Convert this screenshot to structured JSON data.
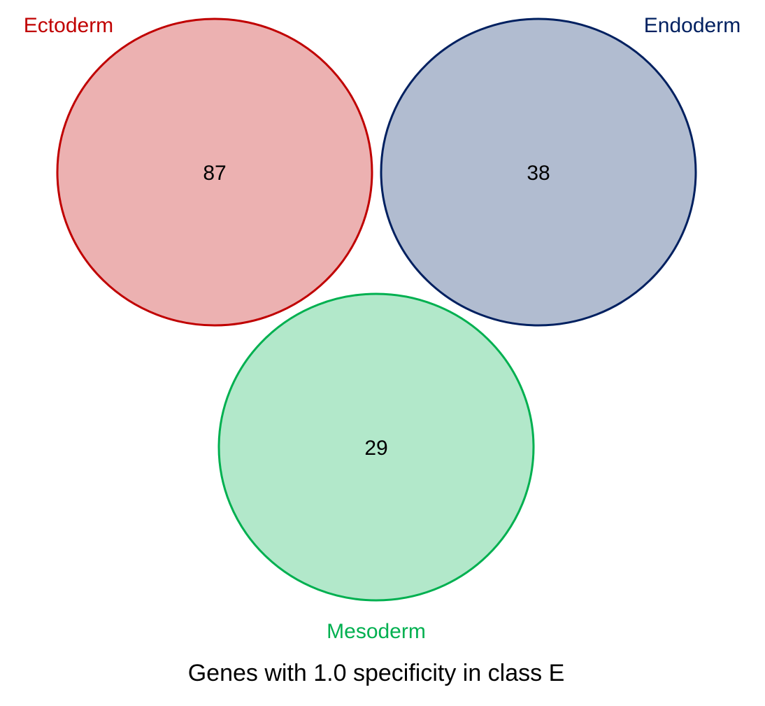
{
  "diagram": {
    "type": "venn",
    "sets": [
      {
        "label": "Ectoderm",
        "count": "87",
        "stroke": "#C00000",
        "fill": "#ECB1B1"
      },
      {
        "label": "Endoderm",
        "count": "38",
        "stroke": "#002060",
        "fill": "#B1BCD0"
      },
      {
        "label": "Mesoderm",
        "count": "29",
        "stroke": "#00B050",
        "fill": "#B2E8CA"
      }
    ],
    "caption": "Genes with 1.0 specificity in class E"
  }
}
